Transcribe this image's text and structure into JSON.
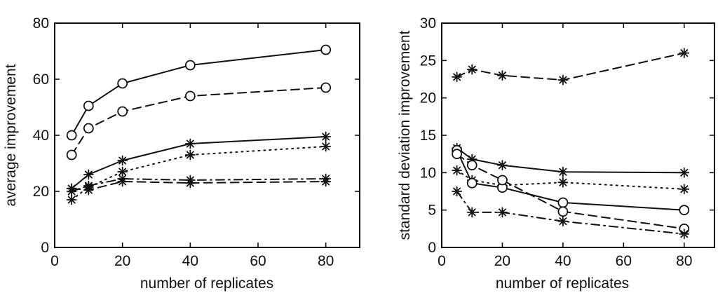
{
  "chart_data": [
    {
      "type": "line",
      "title": "",
      "xlabel": "number of replicates",
      "ylabel": "average improvement",
      "xlim": [
        0,
        90
      ],
      "ylim": [
        0,
        80
      ],
      "xticks": [
        0,
        20,
        40,
        60,
        80
      ],
      "yticks": [
        0,
        20,
        40,
        60,
        80
      ],
      "x": [
        5,
        10,
        20,
        40,
        80
      ],
      "series": [
        {
          "values": [
            40,
            50.5,
            58.5,
            65,
            70.5
          ],
          "marker": "circle",
          "line_style": "solid"
        },
        {
          "values": [
            33,
            42.5,
            48.5,
            54,
            57
          ],
          "marker": "circle",
          "line_style": "dashed"
        },
        {
          "values": [
            21,
            26,
            31,
            37,
            39.5
          ],
          "marker": "star",
          "line_style": "solid"
        },
        {
          "values": [
            17,
            21.5,
            27,
            33,
            36
          ],
          "marker": "star",
          "line_style": "dotted"
        },
        {
          "values": [
            20,
            22,
            24.5,
            24,
            24.5
          ],
          "marker": "star",
          "line_style": "dashdot"
        },
        {
          "values": [
            21,
            20.5,
            23.5,
            23,
            23.5
          ],
          "marker": "star",
          "line_style": "dashed"
        }
      ]
    },
    {
      "type": "line",
      "title": "",
      "xlabel": "number of replicates",
      "ylabel": "standard deviation improvement",
      "xlim": [
        0,
        90
      ],
      "ylim": [
        0,
        30
      ],
      "xticks": [
        0,
        20,
        40,
        60,
        80
      ],
      "yticks": [
        0,
        5,
        10,
        15,
        20,
        25,
        30
      ],
      "x": [
        5,
        10,
        20,
        40,
        80
      ],
      "series": [
        {
          "values": [
            22.8,
            23.8,
            23,
            22.4,
            26
          ],
          "marker": "star",
          "line_style": "dashed"
        },
        {
          "values": [
            13.3,
            11.8,
            11,
            10.1,
            10
          ],
          "marker": "star",
          "line_style": "solid"
        },
        {
          "values": [
            10.3,
            9,
            8.3,
            8.7,
            7.8
          ],
          "marker": "star",
          "line_style": "dotted"
        },
        {
          "values": [
            13,
            8.6,
            8,
            6,
            5
          ],
          "marker": "circle",
          "line_style": "solid"
        },
        {
          "values": [
            12.5,
            11,
            9,
            4.8,
            2.5
          ],
          "marker": "circle",
          "line_style": "dashed"
        },
        {
          "values": [
            7.5,
            4.7,
            4.7,
            3.5,
            1.8
          ],
          "marker": "star",
          "line_style": "dashdot"
        }
      ]
    }
  ]
}
